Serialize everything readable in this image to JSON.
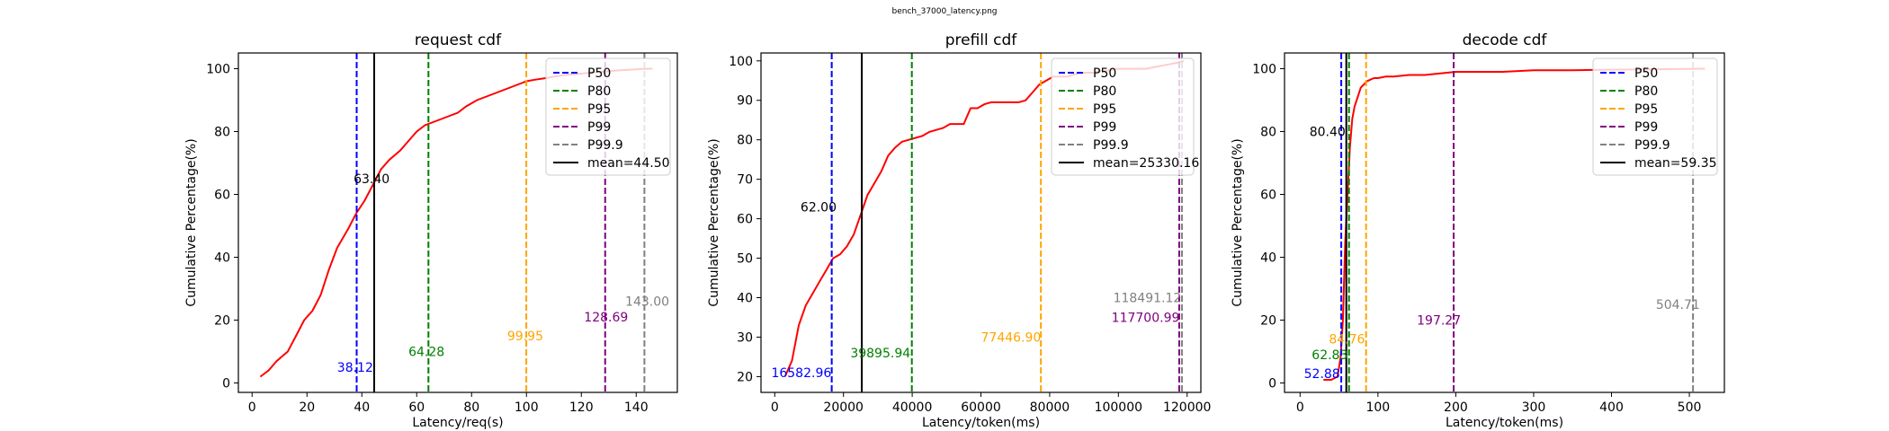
{
  "figure": {
    "suptitle": "bench_37000_latency.png"
  },
  "chart_data": [
    {
      "type": "line",
      "title": "request cdf",
      "xlabel": "Latency/req(s)",
      "ylabel": "Cumulative Percentage(%)",
      "xlim": [
        -5,
        155
      ],
      "ylim": [
        -3,
        105
      ],
      "xticks": [
        0,
        20,
        40,
        60,
        80,
        100,
        120,
        140
      ],
      "yticks": [
        0,
        20,
        40,
        60,
        80,
        100
      ],
      "grid": false,
      "legend_position": "upper right",
      "series": [
        {
          "color": "#ff0000",
          "x": [
            3,
            6,
            9,
            13,
            16,
            19,
            22,
            25,
            28,
            31,
            35,
            38,
            41,
            44,
            47,
            50,
            54,
            57,
            60,
            63,
            66,
            69,
            72,
            75,
            78,
            82,
            85,
            88,
            91,
            94,
            97,
            100,
            103,
            107,
            110,
            114,
            118,
            122,
            126,
            130,
            134,
            138,
            142,
            146
          ],
          "y": [
            2,
            4,
            7,
            10,
            15,
            20,
            23,
            28,
            36,
            43,
            49,
            54,
            58,
            63,
            68,
            71,
            74,
            77,
            80,
            82,
            83,
            84,
            85,
            86,
            88,
            90,
            91,
            92,
            93,
            94,
            95,
            96,
            96.5,
            97,
            97.5,
            98,
            98.3,
            98.6,
            98.9,
            99.2,
            99.5,
            99.7,
            99.9,
            100
          ]
        }
      ],
      "vlines": [
        {
          "label": "P50",
          "x": 38.12,
          "color": "#0000ff",
          "style": "dashed",
          "text": "38.12",
          "text_x": 31,
          "text_y": 5
        },
        {
          "label": "P80",
          "x": 64.28,
          "color": "#008000",
          "style": "dashed",
          "text": "64.28",
          "text_x": 57,
          "text_y": 10
        },
        {
          "label": "P95",
          "x": 99.95,
          "color": "#ffa500",
          "style": "dashed",
          "text": "99.95",
          "text_x": 93,
          "text_y": 15
        },
        {
          "label": "P99",
          "x": 128.69,
          "color": "#800080",
          "style": "dashed",
          "text": "128.69",
          "text_x": 121,
          "text_y": 21
        },
        {
          "label": "P99.9",
          "x": 143.0,
          "color": "#808080",
          "style": "dashed",
          "text": "143.00",
          "text_x": 136,
          "text_y": 26
        },
        {
          "label": "mean=44.50",
          "x": 44.5,
          "color": "#000000",
          "style": "solid",
          "text": "63.40",
          "text_x": 37,
          "text_y": 65
        }
      ]
    },
    {
      "type": "line",
      "title": "prefill cdf",
      "xlabel": "Latency/token(ms)",
      "ylabel": "Cumulative Percentage(%)",
      "xlim": [
        -4000,
        124000
      ],
      "ylim": [
        16,
        102
      ],
      "xticks": [
        0,
        20000,
        40000,
        60000,
        80000,
        100000,
        120000
      ],
      "yticks": [
        20,
        30,
        40,
        50,
        60,
        70,
        80,
        90,
        100
      ],
      "grid": false,
      "legend_position": "upper right",
      "series": [
        {
          "color": "#ff0000",
          "x": [
            3000,
            5000,
            7000,
            9000,
            11000,
            13000,
            15000,
            17000,
            19000,
            21000,
            23000,
            25000,
            27000,
            29000,
            31000,
            33000,
            35000,
            37000,
            39000,
            41000,
            43000,
            45000,
            47000,
            49000,
            51000,
            53000,
            55000,
            57000,
            59000,
            61000,
            63000,
            65000,
            67000,
            69000,
            71000,
            73000,
            75000,
            77000,
            79000,
            81000,
            83000,
            85000,
            87000,
            89000,
            91000,
            93000,
            95000,
            97000,
            99000,
            102000,
            105000,
            108000,
            111000,
            114000,
            117000,
            119000
          ],
          "y": [
            20,
            24,
            33,
            38,
            41,
            44,
            47,
            50,
            51,
            53,
            56,
            61,
            66,
            69,
            72,
            76,
            78,
            79.5,
            80,
            80.5,
            81,
            82,
            82.5,
            83,
            84,
            84,
            84,
            88,
            88,
            89,
            89.5,
            89.5,
            89.5,
            89.5,
            89.5,
            90,
            92,
            94,
            95,
            96,
            96,
            96,
            96.5,
            97,
            97,
            97,
            97.5,
            97.5,
            98,
            98,
            98,
            98,
            98.5,
            99,
            99.5,
            100
          ]
        }
      ],
      "vlines": [
        {
          "label": "P50",
          "x": 16582.96,
          "color": "#0000ff",
          "style": "dashed",
          "text": "16582.96",
          "text_x": -1000,
          "text_y": 21
        },
        {
          "label": "P80",
          "x": 39895.94,
          "color": "#008000",
          "style": "dashed",
          "text": "39895.94",
          "text_x": 22000,
          "text_y": 26
        },
        {
          "label": "P95",
          "x": 77446.9,
          "color": "#ffa500",
          "style": "dashed",
          "text": "77446.90",
          "text_x": 60000,
          "text_y": 30
        },
        {
          "label": "P99",
          "x": 117700.99,
          "color": "#800080",
          "style": "dashed",
          "text": "117700.99",
          "text_x": 98000,
          "text_y": 35
        },
        {
          "label": "P99.9",
          "x": 118491.12,
          "color": "#808080",
          "style": "dashed",
          "text": "118491.12",
          "text_x": 98500,
          "text_y": 40
        },
        {
          "label": "mean=25330.16",
          "x": 25330.16,
          "color": "#000000",
          "style": "solid",
          "text": "62.00",
          "text_x": 7500,
          "text_y": 63
        }
      ]
    },
    {
      "type": "line",
      "title": "decode cdf",
      "xlabel": "Latency/token(ms)",
      "ylabel": "Cumulative Percentage(%)",
      "xlim": [
        -20,
        545
      ],
      "ylim": [
        -3,
        105
      ],
      "xticks": [
        0,
        100,
        200,
        300,
        400,
        500
      ],
      "yticks": [
        0,
        20,
        40,
        60,
        80,
        100
      ],
      "grid": false,
      "legend_position": "upper right",
      "series": [
        {
          "color": "#ff0000",
          "x": [
            30,
            40,
            48,
            52,
            55,
            58,
            61,
            64,
            67,
            70,
            74,
            78,
            82,
            86,
            90,
            95,
            100,
            110,
            120,
            140,
            160,
            180,
            200,
            230,
            260,
            300,
            350,
            400,
            450,
            500,
            520
          ],
          "y": [
            1,
            1,
            2,
            8,
            20,
            45,
            60,
            75,
            84,
            88,
            91,
            94,
            95,
            96,
            96.5,
            97,
            97,
            97.5,
            97.5,
            98,
            98,
            98.5,
            99,
            99,
            99,
            99.5,
            99.5,
            99.7,
            99.8,
            99.9,
            100
          ]
        }
      ],
      "vlines": [
        {
          "label": "P50",
          "x": 52.88,
          "color": "#0000ff",
          "style": "dashed",
          "text": "52.88",
          "text_x": 5,
          "text_y": 3
        },
        {
          "label": "P80",
          "x": 62.83,
          "color": "#008000",
          "style": "dashed",
          "text": "62.83",
          "text_x": 15,
          "text_y": 9
        },
        {
          "label": "P95",
          "x": 84.76,
          "color": "#ffa500",
          "style": "dashed",
          "text": "84.76",
          "text_x": 37,
          "text_y": 14
        },
        {
          "label": "P99",
          "x": 197.27,
          "color": "#800080",
          "style": "dashed",
          "text": "197.27",
          "text_x": 150,
          "text_y": 20
        },
        {
          "label": "P99.9",
          "x": 504.71,
          "color": "#808080",
          "style": "dashed",
          "text": "504.71",
          "text_x": 457,
          "text_y": 25
        },
        {
          "label": "mean=59.35",
          "x": 59.35,
          "color": "#000000",
          "style": "solid",
          "text": "80.40",
          "text_x": 12,
          "text_y": 80
        }
      ]
    }
  ]
}
